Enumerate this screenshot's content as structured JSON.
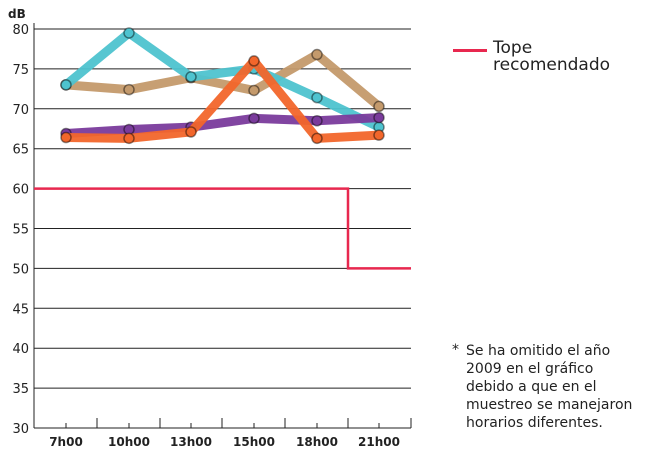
{
  "chart_data": {
    "type": "line",
    "ylabel": "dB",
    "xlabel": "",
    "ylim": [
      30,
      80
    ],
    "yticks": [
      "30",
      "35",
      "40",
      "45",
      "50",
      "55",
      "60",
      "65",
      "70",
      "75",
      "80"
    ],
    "categories": [
      "7h00",
      "10h00",
      "13h00",
      "15h00",
      "18h00",
      "21h00"
    ],
    "grid": "horizontal",
    "series": [
      {
        "color": "#c49a6c",
        "values": [
          73,
          72.4,
          73.9,
          72.3,
          76.8,
          70.3
        ]
      },
      {
        "color": "#4ec3cf",
        "values": [
          73,
          79.5,
          74,
          75,
          71.4,
          67.7
        ]
      },
      {
        "color": "#7a3b9c",
        "values": [
          66.9,
          67.4,
          67.7,
          68.8,
          68.5,
          68.9
        ]
      },
      {
        "color": "#f2662b",
        "values": [
          66.4,
          66.3,
          67.1,
          76,
          66.3,
          66.7
        ]
      }
    ],
    "reference": {
      "name": "Tope recomendado",
      "color": "#e8284f",
      "steps": [
        {
          "from_category": "7h00",
          "value": 60
        },
        {
          "from_category": "21h00",
          "value": 50,
          "step_at": "between 18h00 and 21h00"
        }
      ]
    }
  },
  "legend": {
    "label": "Tope recomendado",
    "placement": "top-right",
    "color": "#e8284f"
  },
  "footnote": {
    "mark": "*",
    "text": "Se ha omitido el año 2009 en el gráfico debido a que en el muestreo se manejaron horarios diferentes."
  }
}
